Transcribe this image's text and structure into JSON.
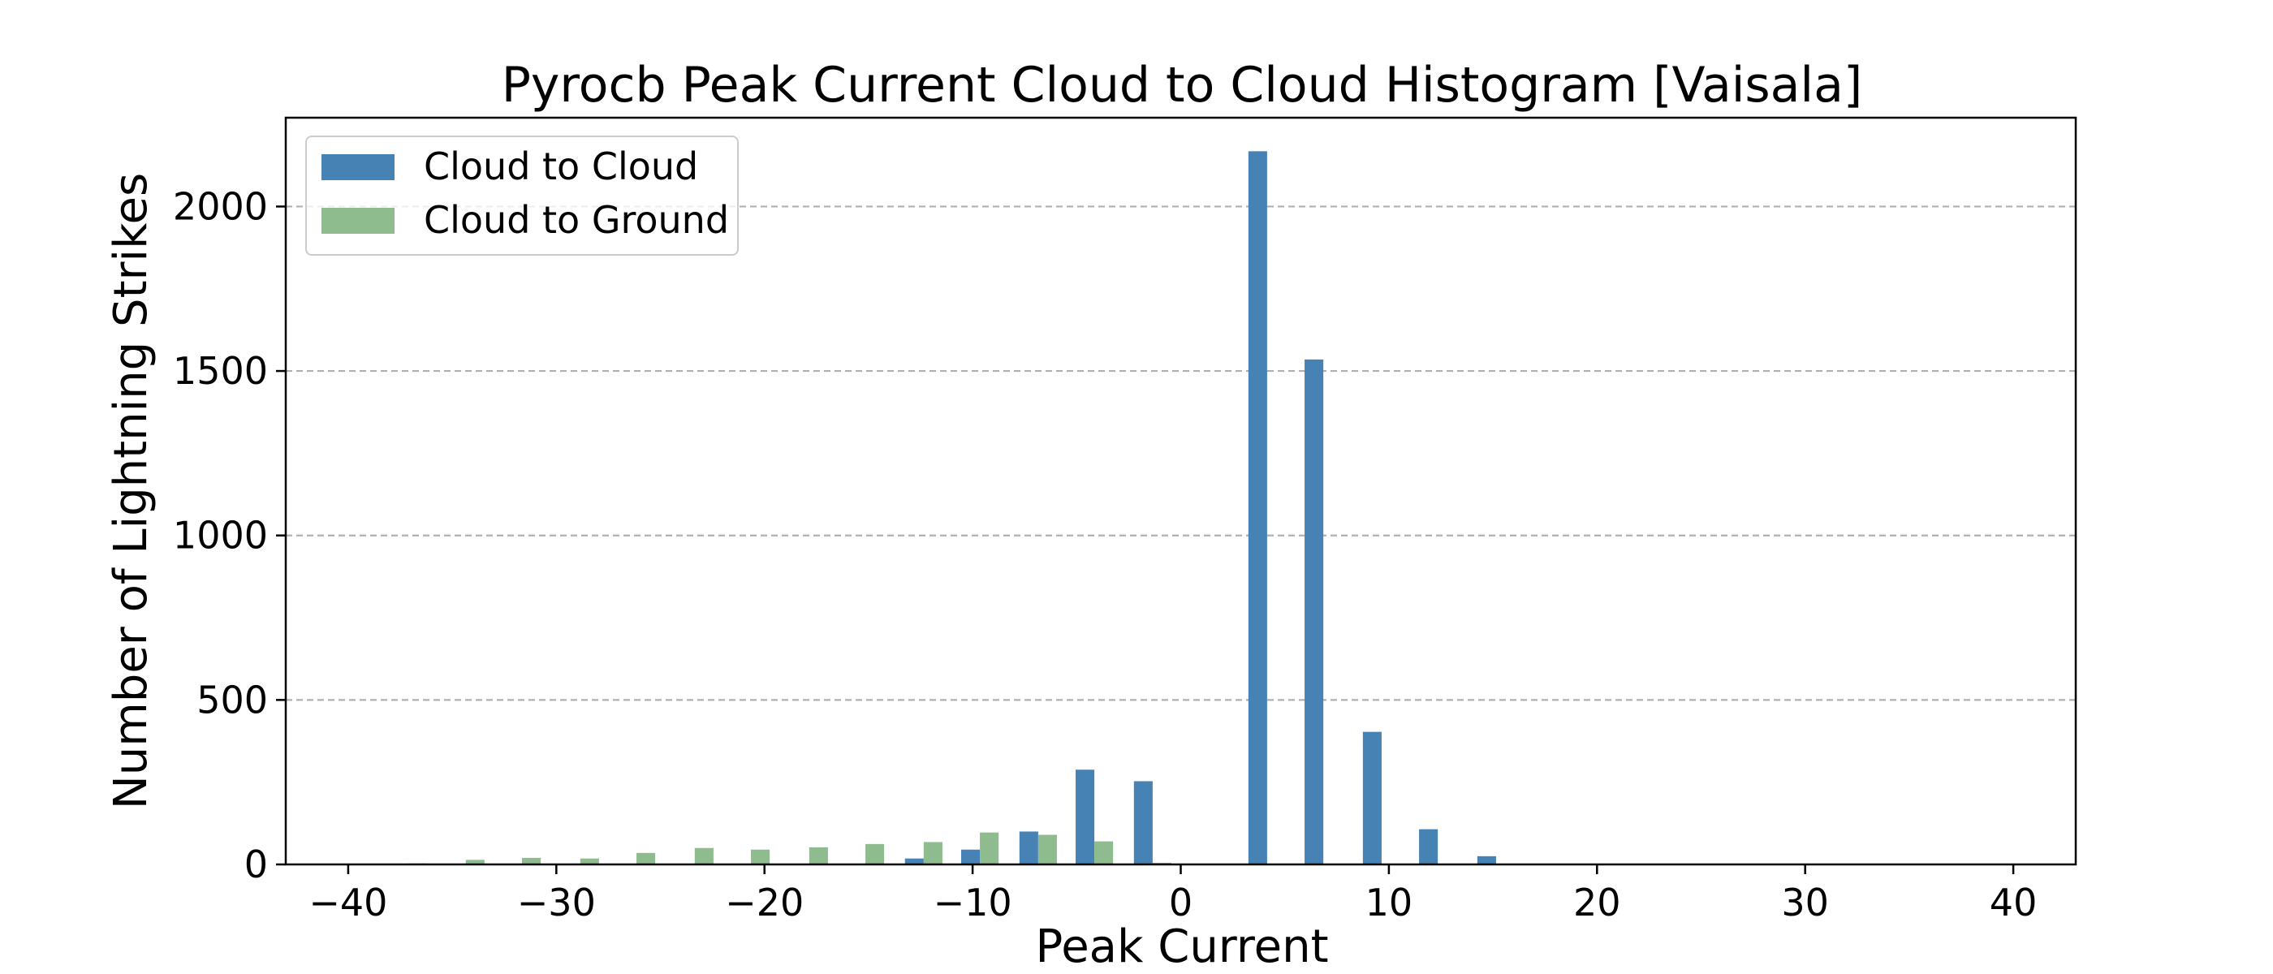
{
  "chart_data": {
    "type": "bar",
    "title": "Pyrocb Peak Current Cloud to Cloud Histogram [Vaisala]",
    "xlabel": "Peak Current",
    "ylabel": "Number of Lightning Strikes",
    "xlim": [
      -43,
      43
    ],
    "ylim": [
      0,
      2270
    ],
    "xticks": [
      -40,
      -30,
      -20,
      -10,
      0,
      10,
      20,
      30,
      40
    ],
    "xtick_labels": [
      "−40",
      "−30",
      "−20",
      "−10",
      "0",
      "10",
      "20",
      "30",
      "40"
    ],
    "yticks": [
      0,
      500,
      1000,
      1500,
      2000
    ],
    "ytick_labels": [
      "0",
      "500",
      "1000",
      "1500",
      "2000"
    ],
    "grid": {
      "axis": "y",
      "style": "dashed"
    },
    "legend": {
      "position": "upper-left"
    },
    "bar_width": 0.9,
    "series": [
      {
        "name": "Cloud to Cloud",
        "color": "#4682b4",
        "x": [
          -37.6,
          -34.8,
          -32.1,
          -29.3,
          -26.6,
          -23.8,
          -21.1,
          -18.3,
          -15.6,
          -12.8,
          -10.1,
          -7.3,
          -4.6,
          -1.8,
          0.9,
          3.7,
          6.4,
          9.2,
          11.9,
          14.7,
          17.4,
          20.2,
          22.9,
          25.7,
          28.4,
          31.2,
          33.9,
          36.7,
          39.4
        ],
        "values": [
          0,
          0,
          0,
          0,
          0,
          0,
          0,
          0,
          0,
          18,
          45,
          100,
          288,
          253,
          0,
          2168,
          1535,
          403,
          107,
          25,
          0,
          0,
          0,
          0,
          0,
          0,
          0,
          0,
          0
        ]
      },
      {
        "name": "Cloud to Ground",
        "color": "#8fbc8f",
        "x": [
          -36.7,
          -33.9,
          -31.2,
          -28.4,
          -25.7,
          -22.9,
          -20.2,
          -17.4,
          -14.7,
          -11.9,
          -9.2,
          -6.4,
          -3.7,
          -0.9,
          1.8,
          4.6,
          7.3,
          10.1,
          12.8,
          15.6,
          18.3,
          21.1,
          23.8,
          26.6,
          29.3,
          32.1,
          34.8,
          37.6,
          40.3
        ],
        "values": [
          3,
          14,
          20,
          18,
          35,
          50,
          45,
          52,
          62,
          68,
          97,
          90,
          70,
          5,
          0,
          0,
          0,
          0,
          0,
          0,
          0,
          0,
          0,
          0,
          0,
          0,
          0,
          0,
          0
        ]
      }
    ]
  }
}
